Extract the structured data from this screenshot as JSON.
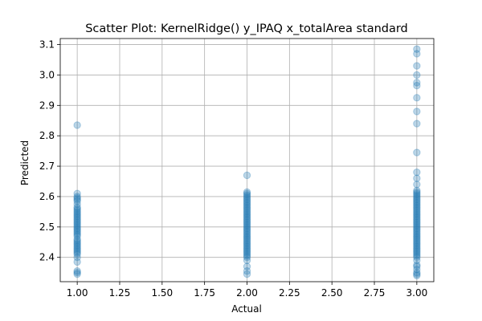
{
  "chart_data": {
    "type": "scatter",
    "title": "Scatter Plot: KernelRidge() y_IPAQ x_totalArea standard",
    "xlabel": "Actual",
    "ylabel": "Predicted",
    "xlim": [
      0.9,
      3.1
    ],
    "ylim": [
      2.32,
      3.12
    ],
    "grid": true,
    "point_color": "#1f77b4",
    "point_alpha": 0.3,
    "x_ticks": [
      1.0,
      1.25,
      1.5,
      1.75,
      2.0,
      2.25,
      2.5,
      2.75,
      3.0
    ],
    "x_tick_labels": [
      "1.00",
      "1.25",
      "1.50",
      "1.75",
      "2.00",
      "2.25",
      "2.50",
      "2.75",
      "3.00"
    ],
    "y_ticks": [
      2.4,
      2.5,
      2.6,
      2.7,
      2.8,
      2.9,
      3.0,
      3.1
    ],
    "y_tick_labels": [
      "2.4",
      "2.5",
      "2.6",
      "2.7",
      "2.8",
      "2.9",
      "3.0",
      "3.1"
    ],
    "series": [
      {
        "x": 1.0,
        "y": [
          2.835,
          2.61,
          2.6,
          2.595,
          2.59,
          2.585,
          2.575,
          2.565,
          2.56,
          2.555,
          2.55,
          2.545,
          2.54,
          2.535,
          2.53,
          2.525,
          2.52,
          2.515,
          2.51,
          2.505,
          2.5,
          2.495,
          2.49,
          2.485,
          2.48,
          2.475,
          2.47,
          2.46,
          2.455,
          2.45,
          2.445,
          2.44,
          2.435,
          2.43,
          2.425,
          2.42,
          2.415,
          2.41,
          2.4,
          2.385,
          2.355,
          2.35,
          2.345
        ]
      },
      {
        "x": 2.0,
        "y": [
          2.67,
          2.615,
          2.61,
          2.605,
          2.6,
          2.595,
          2.59,
          2.585,
          2.58,
          2.575,
          2.57,
          2.565,
          2.56,
          2.555,
          2.55,
          2.545,
          2.54,
          2.535,
          2.53,
          2.525,
          2.52,
          2.515,
          2.51,
          2.505,
          2.5,
          2.495,
          2.49,
          2.485,
          2.48,
          2.475,
          2.47,
          2.465,
          2.46,
          2.455,
          2.45,
          2.445,
          2.44,
          2.435,
          2.43,
          2.425,
          2.42,
          2.415,
          2.41,
          2.405,
          2.4,
          2.39,
          2.37,
          2.355,
          2.345
        ]
      },
      {
        "x": 3.0,
        "y": [
          3.085,
          3.07,
          3.03,
          3.0,
          2.975,
          2.965,
          2.925,
          2.88,
          2.84,
          2.745,
          2.68,
          2.66,
          2.64,
          2.62,
          2.615,
          2.61,
          2.605,
          2.6,
          2.595,
          2.59,
          2.585,
          2.58,
          2.575,
          2.57,
          2.565,
          2.56,
          2.555,
          2.55,
          2.545,
          2.54,
          2.535,
          2.53,
          2.525,
          2.52,
          2.515,
          2.51,
          2.505,
          2.5,
          2.495,
          2.49,
          2.485,
          2.48,
          2.475,
          2.47,
          2.465,
          2.46,
          2.455,
          2.45,
          2.445,
          2.44,
          2.435,
          2.43,
          2.425,
          2.42,
          2.415,
          2.41,
          2.405,
          2.4,
          2.39,
          2.375,
          2.37,
          2.36,
          2.35,
          2.345,
          2.34
        ]
      }
    ]
  }
}
